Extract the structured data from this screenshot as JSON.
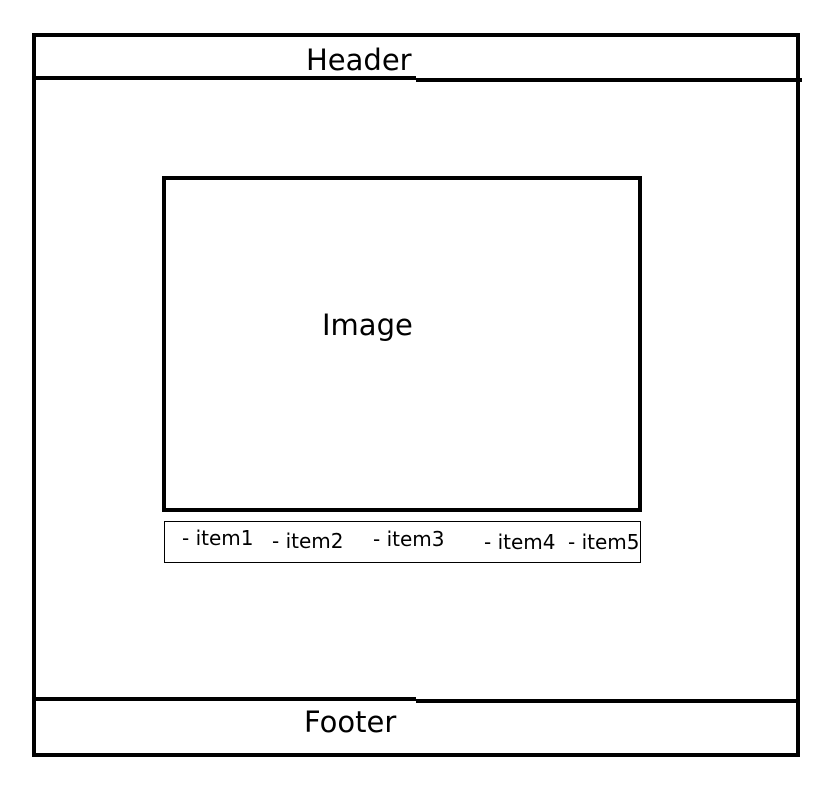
{
  "header": {
    "label": "Header"
  },
  "main": {
    "image_label": "Image",
    "items": [
      "- item1",
      "- item2",
      "- item3",
      "- item4",
      "- item5"
    ]
  },
  "footer": {
    "label": "Footer"
  },
  "colors": {
    "stroke": "#000000",
    "background": "#ffffff"
  }
}
